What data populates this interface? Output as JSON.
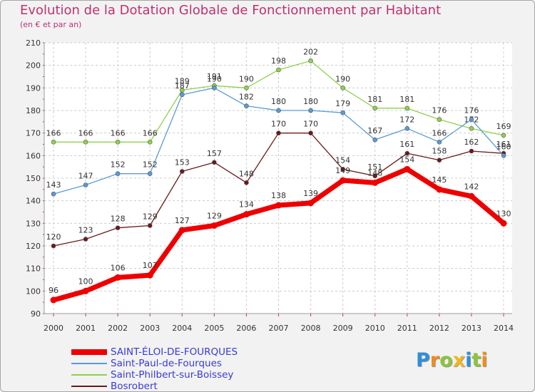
{
  "header": {
    "title": "Evolution de la Dotation Globale de Fonctionnement par Habitant",
    "subtitle": "(en € et par an)"
  },
  "chart_data": {
    "type": "line",
    "title": "Evolution de la Dotation Globale de Fonctionnement par Habitant",
    "subtitle": "(en € et par an)",
    "x": [
      2000,
      2001,
      2002,
      2003,
      2004,
      2005,
      2006,
      2007,
      2008,
      2009,
      2010,
      2011,
      2012,
      2013,
      2014
    ],
    "ylim": [
      90,
      210
    ],
    "yticks": [
      90,
      100,
      110,
      120,
      130,
      140,
      150,
      160,
      170,
      180,
      190,
      200,
      210
    ],
    "grid": true,
    "legend_position": "bottom-left",
    "series": [
      {
        "name": "Bosrobert",
        "color": "#6b1a1a",
        "values": [
          120,
          123,
          128,
          129,
          153,
          157,
          148,
          170,
          170,
          154,
          151,
          161,
          158,
          162,
          161
        ]
      },
      {
        "name": "Saint-Philbert-sur-Boissey",
        "color": "#8fd14f",
        "values": [
          166,
          166,
          166,
          166,
          189,
          191,
          190,
          198,
          202,
          190,
          181,
          181,
          176,
          172,
          169
        ]
      },
      {
        "name": "Saint-Paul-de-Fourques",
        "color": "#5b9bd5",
        "values": [
          143,
          147,
          152,
          152,
          187,
          190,
          182,
          180,
          180,
          179,
          167,
          172,
          166,
          176,
          160
        ]
      },
      {
        "name": "SAINT-ÉLOI-DE-FOURQUES",
        "color": "#ee0000",
        "values": [
          96,
          100,
          106,
          107,
          127,
          129,
          134,
          138,
          139,
          149,
          148,
          154,
          145,
          142,
          130
        ]
      }
    ]
  },
  "legend": {
    "items": [
      {
        "label": "SAINT-ÉLOI-DE-FOURQUES",
        "color": "#ee0000"
      },
      {
        "label": "Saint-Paul-de-Fourques",
        "color": "#5b9bd5"
      },
      {
        "label": "Saint-Philbert-sur-Boissey",
        "color": "#8fd14f"
      },
      {
        "label": "Bosrobert",
        "color": "#6b1a1a"
      }
    ]
  },
  "logo": {
    "letters": [
      "P",
      "r",
      "o",
      "x",
      "i",
      "t",
      "i"
    ],
    "colors": [
      "#2e8fd8",
      "#f08c1e",
      "#8cc43c",
      "#f0b81e",
      "#2e8fd8",
      "#8cc43c",
      "#f08c1e"
    ]
  }
}
